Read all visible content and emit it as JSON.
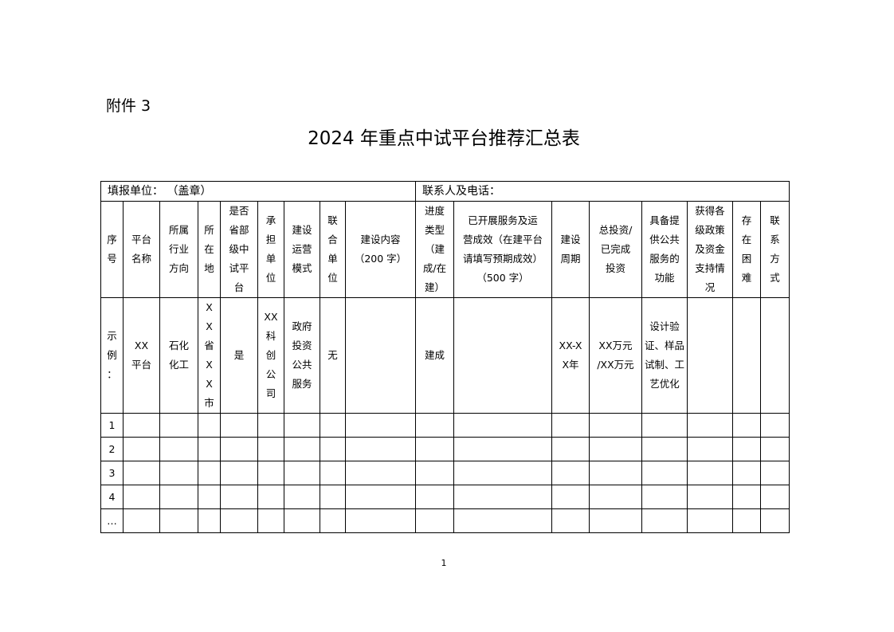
{
  "attachment_label": "附件 3",
  "title": "2024 年重点中试平台推荐汇总表",
  "fill_unit": "填报单位：   （盖章）",
  "contact": "联系人及电话：",
  "headers": [
    "序\n号",
    "平台\n名称",
    "所属\n行业\n方向",
    "所\n在\n地",
    "是否\n省部\n级中\n试平\n台",
    "承\n担\n单\n位",
    "建设\n运营\n模式",
    "联\n合\n单\n位",
    "建设内容\n（200 字）",
    "进度\n类型\n（建\n成/在\n建）",
    "已开展服务及运\n营成效（在建平台\n请填写预期成效）\n（500 字）",
    "建设\n周期",
    "总投资/\n已完成\n投资",
    "具备提\n供公共\n服务的\n功能",
    "获得各\n级政策\n及资金\n支持情\n况",
    "存\n在\n困\n难",
    "联\n系\n方\n式"
  ],
  "example_row": [
    "示\n例\n：",
    "XX\n平台",
    "石化\n化工",
    "X\nX\n省\nX\nX\n市",
    "是",
    "XX\n科\n创\n公\n司",
    "政府\n投资\n公共\n服务",
    "无",
    "",
    "建成",
    "",
    "XX-X\nX年",
    "XX万元\n/XX万元",
    "设计验\n证、样品\n试制、工\n艺优化",
    "",
    "",
    ""
  ],
  "row_numbers": [
    "1",
    "2",
    "3",
    "4",
    "…"
  ],
  "page_number": "1"
}
